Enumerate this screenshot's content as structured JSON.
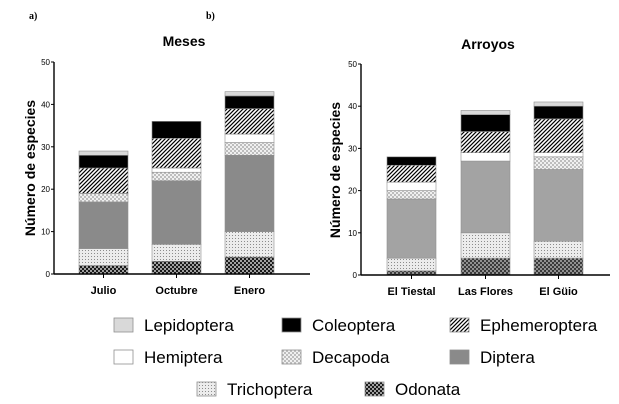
{
  "panels": [
    "a)",
    "b)"
  ],
  "legend": {
    "rows": [
      [
        "Lepidoptera",
        "Coleoptera",
        "Ephemeroptera"
      ],
      [
        "Hemiptera",
        "Decapoda",
        "Diptera"
      ],
      [
        "Trichoptera",
        "Odonata"
      ]
    ]
  },
  "series_styles": {
    "Odonata": "odonata",
    "Trichoptera": "trichoptera",
    "Diptera": "diptera",
    "Decapoda": "decapoda",
    "Hemiptera": "hemiptera",
    "Ephemeroptera": "ephemeroptera",
    "Coleoptera": "coleoptera",
    "Lepidoptera": "lepidoptera"
  },
  "colors": {
    "coleoptera": "#000000",
    "lepidoptera": "#d9d9d9",
    "hemiptera": "#ffffff",
    "diptera_a": "#8a8a8a",
    "diptera_b": "#a3a3a3",
    "axis": "#000000"
  },
  "chart_data": [
    {
      "type": "bar",
      "stacked": true,
      "title": "Meses",
      "panel": "a)",
      "xlabel": "",
      "ylabel": "Número de especies",
      "ylim": [
        0,
        50
      ],
      "yticks": [
        0,
        10,
        20,
        30,
        40,
        50
      ],
      "grid": false,
      "categories": [
        "Julio",
        "Octubre",
        "Enero"
      ],
      "series": [
        {
          "name": "Odonata",
          "values": [
            2,
            3,
            4
          ]
        },
        {
          "name": "Trichoptera",
          "values": [
            4,
            4,
            6
          ]
        },
        {
          "name": "Diptera",
          "values": [
            11,
            15,
            18
          ]
        },
        {
          "name": "Decapoda",
          "values": [
            2,
            2,
            3
          ]
        },
        {
          "name": "Hemiptera",
          "values": [
            0,
            1,
            2
          ]
        },
        {
          "name": "Ephemeroptera",
          "values": [
            6,
            7,
            6
          ]
        },
        {
          "name": "Coleoptera",
          "values": [
            3,
            4,
            3
          ]
        },
        {
          "name": "Lepidoptera",
          "values": [
            1,
            0,
            1
          ]
        }
      ],
      "totals": [
        29,
        36,
        43
      ]
    },
    {
      "type": "bar",
      "stacked": true,
      "title": "Arroyos",
      "panel": "b)",
      "xlabel": "",
      "ylabel": "Número de especies",
      "ylim": [
        0,
        50
      ],
      "yticks": [
        0,
        10,
        20,
        30,
        40,
        50
      ],
      "grid": false,
      "categories": [
        "El Tiestal",
        "Las Flores",
        "El Güio"
      ],
      "series": [
        {
          "name": "Odonata",
          "values": [
            1,
            4,
            4
          ]
        },
        {
          "name": "Trichoptera",
          "values": [
            3,
            6,
            4
          ]
        },
        {
          "name": "Diptera",
          "values": [
            14,
            17,
            17
          ]
        },
        {
          "name": "Decapoda",
          "values": [
            2,
            0,
            3
          ]
        },
        {
          "name": "Hemiptera",
          "values": [
            2,
            2,
            1
          ]
        },
        {
          "name": "Ephemeroptera",
          "values": [
            4,
            5,
            8
          ]
        },
        {
          "name": "Coleoptera",
          "values": [
            2,
            4,
            3
          ]
        },
        {
          "name": "Lepidoptera",
          "values": [
            0,
            1,
            1
          ]
        }
      ],
      "totals": [
        28,
        39,
        41
      ]
    }
  ]
}
